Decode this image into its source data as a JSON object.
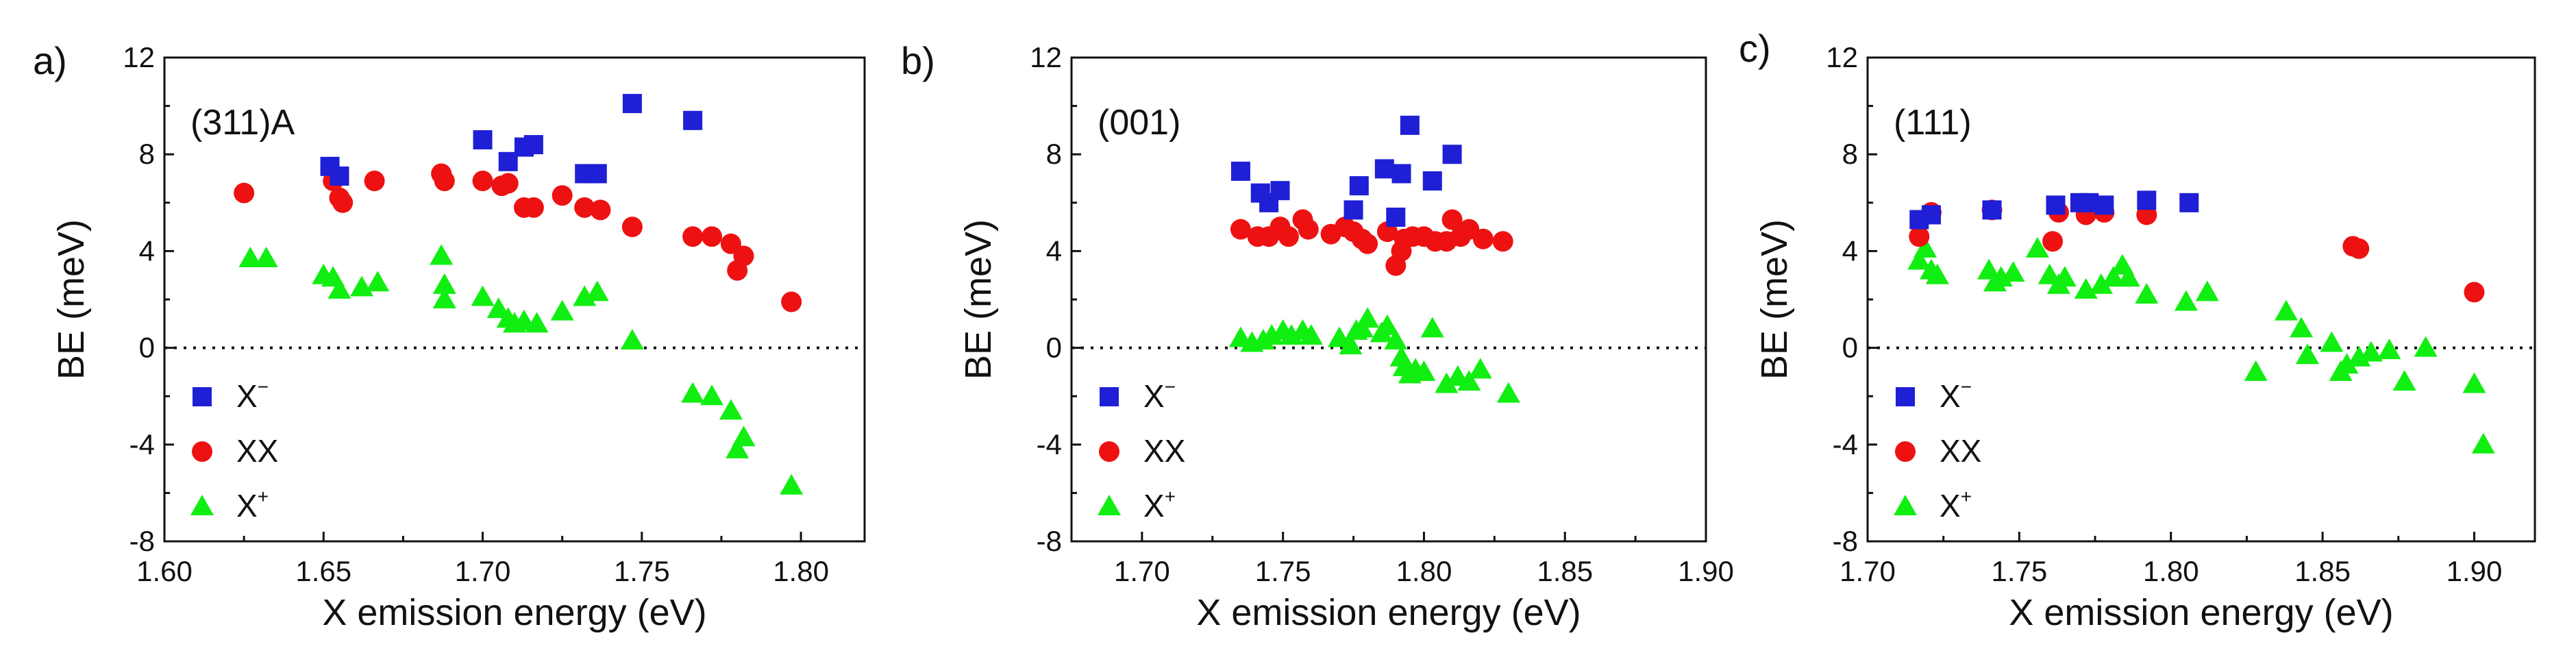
{
  "figure": {
    "colors": {
      "x_minus": "#1f1fd6",
      "xx": "#ee1111",
      "x_plus": "#11ee11",
      "axis": "#111111"
    }
  },
  "chart_data": [
    {
      "type": "scatter",
      "panel_label": "a)",
      "annotation": "(311)A",
      "xlabel": "X emission energy (eV)",
      "ylabel": "BE (meV)",
      "xlim": [
        1.6,
        1.82
      ],
      "ylim": [
        -8,
        12
      ],
      "xticks": [
        "1.60",
        "1.65",
        "1.70",
        "1.75",
        "1.80"
      ],
      "xtick_values": [
        1.6,
        1.65,
        1.7,
        1.75,
        1.8
      ],
      "yticks": [
        "12",
        "8",
        "4",
        "0",
        "-4",
        "-8"
      ],
      "ytick_values": [
        12,
        8,
        4,
        0,
        -4,
        -8
      ],
      "reference_line_y": 0,
      "legend": {
        "position": "lower-left",
        "entries": [
          "X",
          "XX",
          "X"
        ],
        "superscripts": [
          "−",
          "",
          "+"
        ]
      },
      "series": [
        {
          "name": "X-",
          "marker": "square",
          "x": [
            1.652,
            1.655,
            1.7,
            1.708,
            1.713,
            1.716,
            1.732,
            1.736,
            1.747,
            1.766
          ],
          "y": [
            7.5,
            7.1,
            8.6,
            7.7,
            8.3,
            8.4,
            7.2,
            7.2,
            10.1,
            9.4
          ]
        },
        {
          "name": "XX",
          "marker": "circle",
          "x": [
            1.625,
            1.653,
            1.655,
            1.656,
            1.666,
            1.687,
            1.688,
            1.7,
            1.706,
            1.708,
            1.713,
            1.716,
            1.725,
            1.732,
            1.737,
            1.747,
            1.766,
            1.772,
            1.778,
            1.78,
            1.782,
            1.797
          ],
          "y": [
            6.4,
            6.9,
            6.2,
            6.0,
            6.9,
            7.2,
            6.9,
            6.9,
            6.7,
            6.8,
            5.8,
            5.8,
            6.3,
            5.8,
            5.7,
            5.0,
            4.6,
            4.6,
            4.3,
            3.2,
            3.8,
            1.9
          ]
        },
        {
          "name": "X+",
          "marker": "triangle",
          "x": [
            1.627,
            1.632,
            1.65,
            1.653,
            1.655,
            1.662,
            1.667,
            1.687,
            1.688,
            1.688,
            1.7,
            1.705,
            1.708,
            1.71,
            1.713,
            1.717,
            1.725,
            1.732,
            1.736,
            1.747,
            1.766,
            1.772,
            1.778,
            1.78,
            1.782,
            1.797
          ],
          "y": [
            3.7,
            3.7,
            3.0,
            2.9,
            2.4,
            2.5,
            2.7,
            3.8,
            2.6,
            2.0,
            2.1,
            1.6,
            1.2,
            1.0,
            1.1,
            1.0,
            1.5,
            2.1,
            2.3,
            0.3,
            -1.9,
            -2.0,
            -2.6,
            -4.2,
            -3.7,
            -5.7
          ]
        }
      ]
    },
    {
      "type": "scatter",
      "panel_label": "b)",
      "annotation": "(001)",
      "xlabel": "X emission energy (eV)",
      "ylabel": "BE (meV)",
      "xlim": [
        1.675,
        1.9
      ],
      "ylim": [
        -8,
        12
      ],
      "xticks": [
        "1.70",
        "1.75",
        "1.80",
        "1.85",
        "1.90"
      ],
      "xtick_values": [
        1.7,
        1.75,
        1.8,
        1.85,
        1.9
      ],
      "yticks": [
        "12",
        "8",
        "4",
        "0",
        "-4",
        "-8"
      ],
      "ytick_values": [
        12,
        8,
        4,
        0,
        -4,
        -8
      ],
      "reference_line_y": 0,
      "legend": {
        "position": "lower-left",
        "entries": [
          "X",
          "XX",
          "X"
        ],
        "superscripts": [
          "−",
          "",
          "+"
        ]
      },
      "series": [
        {
          "name": "X-",
          "marker": "square",
          "x": [
            1.735,
            1.742,
            1.745,
            1.749,
            1.775,
            1.777,
            1.786,
            1.79,
            1.792,
            1.795,
            1.803,
            1.81
          ],
          "y": [
            7.3,
            6.4,
            6.0,
            6.5,
            5.7,
            6.7,
            7.4,
            5.4,
            7.2,
            9.2,
            6.9,
            8.0
          ]
        },
        {
          "name": "XX",
          "marker": "circle",
          "x": [
            1.735,
            1.741,
            1.745,
            1.749,
            1.752,
            1.757,
            1.759,
            1.767,
            1.772,
            1.775,
            1.778,
            1.78,
            1.787,
            1.79,
            1.792,
            1.793,
            1.796,
            1.8,
            1.804,
            1.808,
            1.81,
            1.813,
            1.816,
            1.821,
            1.828
          ],
          "y": [
            4.9,
            4.6,
            4.6,
            5.0,
            4.6,
            5.3,
            4.9,
            4.7,
            5.0,
            4.8,
            4.5,
            4.3,
            4.8,
            3.4,
            4.0,
            4.5,
            4.6,
            4.6,
            4.4,
            4.4,
            5.3,
            4.6,
            4.9,
            4.5,
            4.4
          ]
        },
        {
          "name": "X+",
          "marker": "triangle",
          "x": [
            1.735,
            1.739,
            1.743,
            1.746,
            1.75,
            1.753,
            1.757,
            1.76,
            1.77,
            1.774,
            1.776,
            1.778,
            1.78,
            1.785,
            1.787,
            1.79,
            1.792,
            1.793,
            1.795,
            1.797,
            1.8,
            1.803,
            1.808,
            1.812,
            1.816,
            1.82,
            1.83
          ],
          "y": [
            0.4,
            0.2,
            0.3,
            0.5,
            0.7,
            0.5,
            0.7,
            0.5,
            0.4,
            0.1,
            0.7,
            0.8,
            1.2,
            0.6,
            0.9,
            0.3,
            -0.4,
            -0.8,
            -1.1,
            -0.9,
            -1.0,
            0.8,
            -1.5,
            -1.2,
            -1.4,
            -0.9,
            -1.9
          ]
        }
      ]
    },
    {
      "type": "scatter",
      "panel_label": "c)",
      "annotation": "(111)",
      "xlabel": "X emission energy (eV)",
      "ylabel": "BE (meV)",
      "xlim": [
        1.7,
        1.92
      ],
      "ylim": [
        -8,
        12
      ],
      "xticks": [
        "1.70",
        "1.75",
        "1.80",
        "1.85",
        "1.90"
      ],
      "xtick_values": [
        1.7,
        1.75,
        1.8,
        1.85,
        1.9
      ],
      "yticks": [
        "12",
        "8",
        "4",
        "0",
        "-4",
        "-8"
      ],
      "ytick_values": [
        12,
        8,
        4,
        0,
        -4,
        -8
      ],
      "reference_line_y": 0,
      "legend": {
        "position": "lower-left",
        "entries": [
          "X",
          "XX",
          "X"
        ],
        "superscripts": [
          "−",
          "",
          "+"
        ]
      },
      "series": [
        {
          "name": "X-",
          "marker": "square",
          "x": [
            1.717,
            1.721,
            1.741,
            1.762,
            1.77,
            1.773,
            1.778,
            1.792,
            1.806
          ],
          "y": [
            5.3,
            5.5,
            5.7,
            5.9,
            6.0,
            6.0,
            5.9,
            6.1,
            6.0
          ]
        },
        {
          "name": "XX",
          "marker": "circle",
          "x": [
            1.717,
            1.721,
            1.741,
            1.761,
            1.763,
            1.772,
            1.778,
            1.792,
            1.86,
            1.862,
            1.9
          ],
          "y": [
            4.6,
            5.6,
            5.7,
            4.4,
            5.6,
            5.5,
            5.6,
            5.5,
            4.2,
            4.1,
            2.3
          ]
        },
        {
          "name": "X+",
          "marker": "triangle",
          "x": [
            1.717,
            1.719,
            1.721,
            1.723,
            1.74,
            1.742,
            1.744,
            1.748,
            1.756,
            1.76,
            1.763,
            1.765,
            1.772,
            1.777,
            1.781,
            1.784,
            1.786,
            1.792,
            1.805,
            1.812,
            1.828,
            1.838,
            1.843,
            1.845,
            1.853,
            1.856,
            1.858,
            1.862,
            1.866,
            1.872,
            1.877,
            1.884,
            1.9,
            1.903
          ],
          "y": [
            3.6,
            4.1,
            3.2,
            3.0,
            3.2,
            2.7,
            2.9,
            3.1,
            4.1,
            3.0,
            2.6,
            2.9,
            2.4,
            2.6,
            2.9,
            3.4,
            2.9,
            2.2,
            1.9,
            2.3,
            -1.0,
            1.5,
            0.8,
            -0.3,
            0.2,
            -1.0,
            -0.7,
            -0.4,
            -0.2,
            -0.1,
            -1.4,
            0.0,
            -1.5,
            -4.0
          ]
        }
      ]
    }
  ]
}
